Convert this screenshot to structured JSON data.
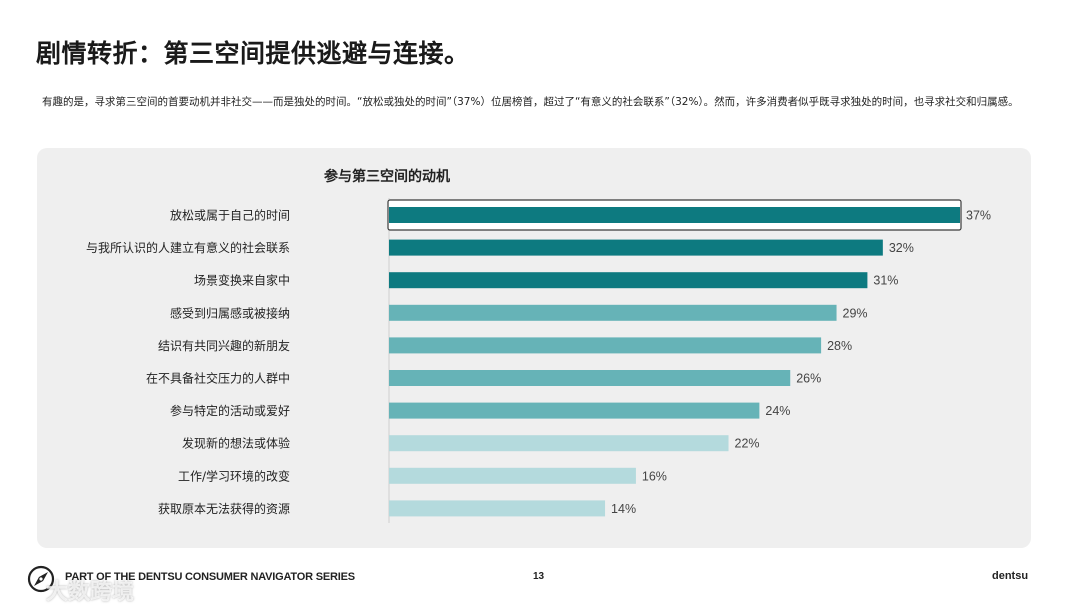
{
  "title": "剧情转折：第三空间提供逃避与连接。",
  "subtitle": "有趣的是，寻求第三空间的首要动机并非社交——而是独处的时间。“放松或独处的时间”（37%）位居榜首，超过了“有意义的社会联系”（32%）。然而，许多消费者似乎既寻求独处的时间，也寻求社交和归属感。",
  "colors": {
    "dark": "#0d7a80",
    "mid": "#66b3b7",
    "light": "#b4dadd",
    "highlight_border": "#3a3a3a"
  },
  "chart_data": {
    "type": "bar",
    "orientation": "horizontal",
    "title": "参与第三空间的动机",
    "categories": [
      "放松或属于自己的时间",
      "与我所认识的人建立有意义的社会联系",
      "场景变换来自家中",
      "感受到归属感或被接纳",
      "结识有共同兴趣的新朋友",
      "在不具备社交压力的人群中",
      "参与特定的活动或爱好",
      "发现新的想法或体验",
      "工作/学习环境的改变",
      "获取原本无法获得的资源"
    ],
    "values": [
      37,
      32,
      31,
      29,
      28,
      26,
      24,
      22,
      16,
      14
    ],
    "value_labels": [
      "37%",
      "32%",
      "31%",
      "29%",
      "28%",
      "26%",
      "24%",
      "22%",
      "16%",
      "14%"
    ],
    "shade": [
      "dark",
      "dark",
      "dark",
      "mid",
      "mid",
      "mid",
      "mid",
      "light",
      "light",
      "light"
    ],
    "highlighted_index": 0,
    "unit": "%",
    "xlim": [
      0,
      37
    ]
  },
  "footer": {
    "series": "PART OF THE DENTSU CONSUMER NAVIGATOR SERIES",
    "page": "13",
    "brand": "dentsu",
    "watermark": "大数跨境"
  }
}
